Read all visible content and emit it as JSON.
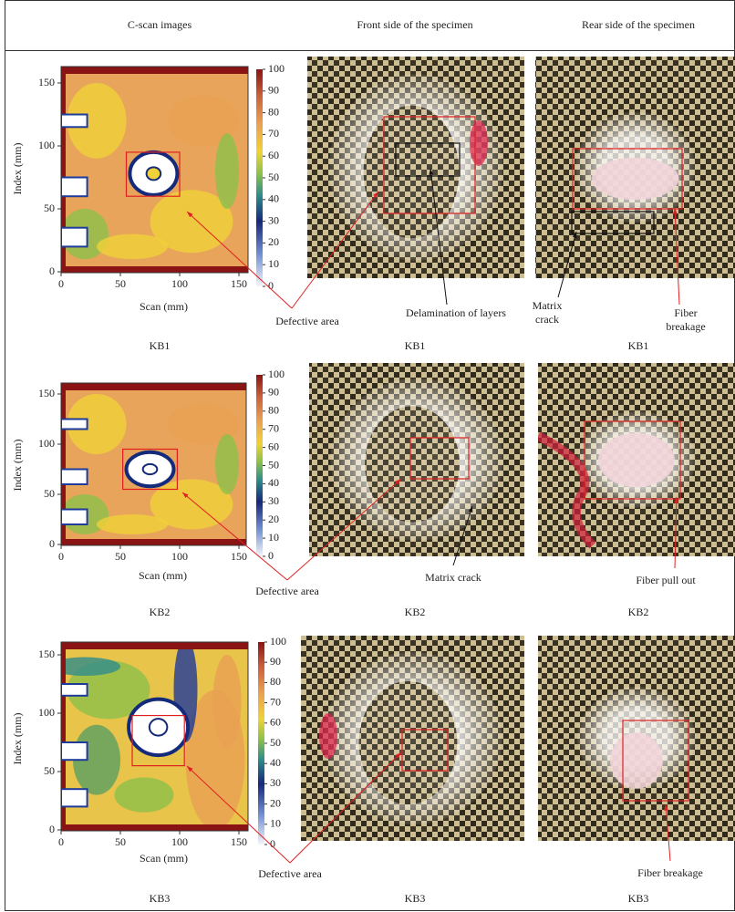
{
  "header": {
    "columns": [
      "C-scan images",
      "Front side of the specimen",
      "Rear side of the specimen"
    ]
  },
  "rows": [
    {
      "cscan": {
        "xlabel": "Scan (mm)",
        "ylabel": "Index (mm)",
        "xticks": [
          0,
          50,
          100,
          150
        ],
        "yticks": [
          0,
          50,
          100,
          150
        ],
        "colorbar_ticks": [
          0,
          10,
          20,
          30,
          40,
          50,
          60,
          70,
          80,
          90,
          100
        ],
        "annotation": "Defective area",
        "label": "KB1"
      },
      "front": {
        "annotations": [
          "Delamination of layers"
        ],
        "label": "KB1"
      },
      "rear": {
        "annotations": [
          "Matrix crack",
          "Fiber breakage"
        ],
        "label": "KB1"
      }
    },
    {
      "cscan": {
        "xlabel": "Scan (mm)",
        "ylabel": "Index (mm)",
        "xticks": [
          0,
          50,
          100,
          150
        ],
        "yticks": [
          0,
          50,
          100,
          150
        ],
        "colorbar_ticks": [
          0,
          10,
          20,
          30,
          40,
          50,
          60,
          70,
          80,
          90,
          100
        ],
        "annotation": "Defective area",
        "label": "KB2"
      },
      "front": {
        "annotations": [
          "Matrix crack"
        ],
        "label": "KB2"
      },
      "rear": {
        "annotations": [
          "Fiber pull out"
        ],
        "label": "KB2"
      }
    },
    {
      "cscan": {
        "xlabel": "Scan (mm)",
        "ylabel": "Index (mm)",
        "xticks": [
          0,
          50,
          100,
          150
        ],
        "yticks": [
          0,
          50,
          100,
          150
        ],
        "colorbar_ticks": [
          0,
          10,
          20,
          30,
          40,
          50,
          60,
          70,
          80,
          90,
          100
        ],
        "annotation": "Defective area",
        "label": "KB3"
      },
      "front": {
        "annotations": [],
        "label": "KB3"
      },
      "rear": {
        "annotations": [
          "Fiber breakage"
        ],
        "label": "KB3"
      }
    }
  ]
}
